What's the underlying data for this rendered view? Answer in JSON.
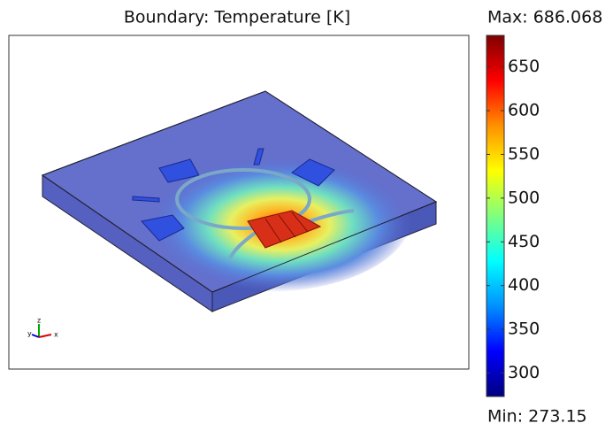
{
  "chart_data": {
    "type": "surface",
    "title": "Boundary: Temperature [K]",
    "colorbar": {
      "max_label": "Max: 686.068",
      "min_label": "Min: 273.15",
      "clim": [
        273.15,
        686.068
      ],
      "ticks": [
        300,
        350,
        400,
        450,
        500,
        550,
        600,
        650
      ],
      "colormap": [
        "#00007f",
        "#0000ff",
        "#0090ff",
        "#00ffff",
        "#7fff7f",
        "#ffff00",
        "#ff9000",
        "#ff0000",
        "#7f0000"
      ]
    },
    "axis_triad": [
      "y",
      "z",
      "x"
    ]
  }
}
